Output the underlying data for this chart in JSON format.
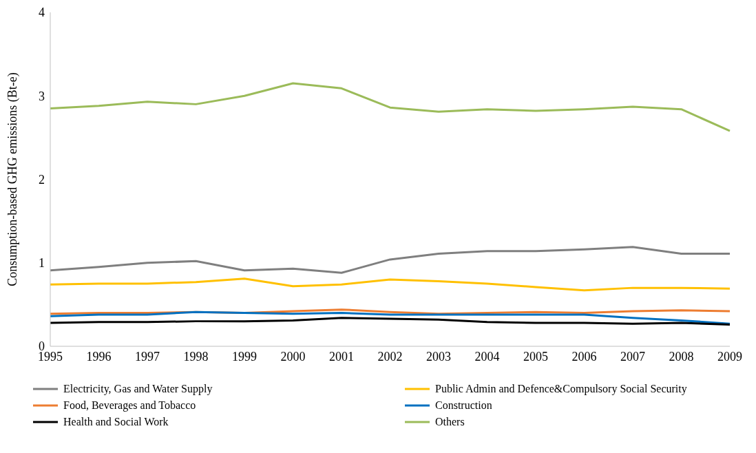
{
  "chart_data": {
    "type": "line",
    "ylabel": "Consumption-based GHG emissions (Bt-e)",
    "categories": [
      "1995",
      "1996",
      "1997",
      "1998",
      "1999",
      "2000",
      "2001",
      "2002",
      "2003",
      "2004",
      "2005",
      "2006",
      "2007",
      "2008",
      "2009"
    ],
    "ylim": [
      0,
      4
    ],
    "yticks": [
      0,
      1,
      2,
      3,
      4
    ],
    "grid": false,
    "legend": "bottom",
    "marker": "none",
    "line_style": "solid",
    "series": [
      {
        "name": "Electricity, Gas and Water Supply",
        "color": "#7f7f7f",
        "values": [
          0.91,
          0.95,
          1.0,
          1.02,
          0.91,
          0.93,
          0.88,
          1.04,
          1.11,
          1.14,
          1.14,
          1.16,
          1.19,
          1.11,
          1.11
        ]
      },
      {
        "name": "Public Admin and Defence&Compulsory Social Security",
        "color": "#ffc000",
        "values": [
          0.74,
          0.75,
          0.75,
          0.77,
          0.81,
          0.72,
          0.74,
          0.8,
          0.78,
          0.75,
          0.71,
          0.67,
          0.7,
          0.7,
          0.69
        ]
      },
      {
        "name": "Food, Beverages and Tobacco",
        "color": "#ed7d31",
        "values": [
          0.39,
          0.4,
          0.4,
          0.41,
          0.4,
          0.42,
          0.44,
          0.41,
          0.39,
          0.4,
          0.41,
          0.4,
          0.42,
          0.43,
          0.42
        ]
      },
      {
        "name": "Construction",
        "color": "#0070c0",
        "values": [
          0.36,
          0.38,
          0.38,
          0.41,
          0.4,
          0.39,
          0.4,
          0.38,
          0.38,
          0.38,
          0.38,
          0.38,
          0.34,
          0.31,
          0.27
        ]
      },
      {
        "name": "Health and Social Work",
        "color": "#000000",
        "values": [
          0.28,
          0.29,
          0.29,
          0.3,
          0.3,
          0.31,
          0.34,
          0.33,
          0.32,
          0.29,
          0.28,
          0.28,
          0.27,
          0.28,
          0.26
        ]
      },
      {
        "name": "Others",
        "color": "#9bbb59",
        "values": [
          2.85,
          2.88,
          2.93,
          2.9,
          3.0,
          3.15,
          3.09,
          2.86,
          2.81,
          2.84,
          2.82,
          2.84,
          2.87,
          2.84,
          2.58
        ]
      }
    ]
  }
}
